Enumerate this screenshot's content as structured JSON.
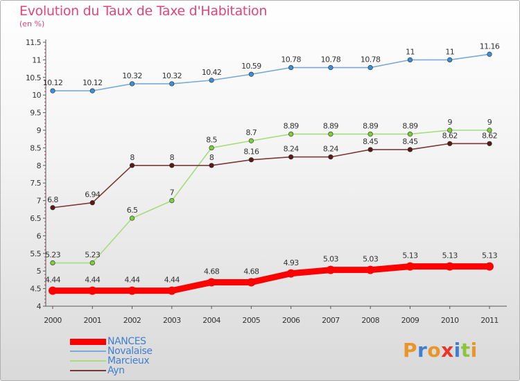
{
  "header": {
    "title": "Evolution du Taux de Taxe d'Habitation",
    "subtitle": "(en %)"
  },
  "colors": {
    "title": "#e0457b",
    "axis": "#555555",
    "legend_text": "#3f7fcf"
  },
  "logo": {
    "text": "Proxiti",
    "letter_colors": [
      "#e8962a",
      "#3f7fcf",
      "#e8962a",
      "#e8362a",
      "#3f7fcf",
      "#8cc43c",
      "#e8962a"
    ]
  },
  "chart_data": {
    "type": "line",
    "title": "Evolution du Taux de Taxe d'Habitation",
    "subtitle": "(en %)",
    "xlabel": "",
    "ylabel": "",
    "x": [
      "2000",
      "2001",
      "2002",
      "2003",
      "2004",
      "2005",
      "2006",
      "2007",
      "2008",
      "2009",
      "2010",
      "2011"
    ],
    "ylim": [
      4,
      11.5
    ],
    "yticks": [
      "4",
      "4.5",
      "5",
      "5.5",
      "6",
      "6.5",
      "7",
      "7.5",
      "8",
      "8.5",
      "9",
      "9.5",
      "10",
      "10.5",
      "11",
      "11.5"
    ],
    "grid": false,
    "legend_position": "bottom-left",
    "series": [
      {
        "name": "NANCES",
        "color": "#ff0000",
        "values": [
          4.44,
          4.44,
          4.44,
          4.44,
          4.68,
          4.68,
          4.93,
          5.03,
          5.03,
          5.13,
          5.13,
          5.13
        ],
        "labels": [
          "4.44",
          "4.44",
          "4.44",
          "4.44",
          "4.68",
          "4.68",
          "4.93",
          "5.03",
          "5.03",
          "5.13",
          "5.13",
          "5.13"
        ],
        "label_position": "above",
        "bold": true
      },
      {
        "name": "Novalaise",
        "color": "#7aaad8",
        "marker_color": "#3b8fd6",
        "values": [
          10.12,
          10.12,
          10.32,
          10.32,
          10.42,
          10.59,
          10.78,
          10.78,
          10.78,
          11,
          11,
          11.16
        ],
        "labels": [
          "10.12",
          "10.12",
          "10.32",
          "10.32",
          "10.42",
          "10.59",
          "10.78",
          "10.78",
          "10.78",
          "11",
          "11",
          "11.16"
        ],
        "label_position": "above"
      },
      {
        "name": "Marcieux",
        "color": "#a5dc7c",
        "marker_color": "#7fcc3c",
        "values": [
          5.23,
          5.23,
          6.5,
          7,
          8.5,
          8.7,
          8.89,
          8.89,
          8.89,
          8.89,
          9,
          9
        ],
        "labels": [
          "5.23",
          "5.23",
          "6.5",
          "7",
          "8.5",
          "8.7",
          "8.89",
          "8.89",
          "8.89",
          "8.89",
          "9",
          "9"
        ],
        "label_position": "above"
      },
      {
        "name": "Ayn",
        "color": "#7a3838",
        "marker_color": "#5a1a1a",
        "values": [
          6.8,
          6.94,
          8,
          8,
          8,
          8.16,
          8.24,
          8.24,
          8.45,
          8.45,
          8.62,
          8.62
        ],
        "labels": [
          "6.8",
          "6.94",
          "8",
          "8",
          "8",
          "8.16",
          "8.24",
          "8.24",
          "8.45",
          "8.45",
          "8.62",
          "8.62"
        ],
        "label_position": "above"
      }
    ]
  }
}
